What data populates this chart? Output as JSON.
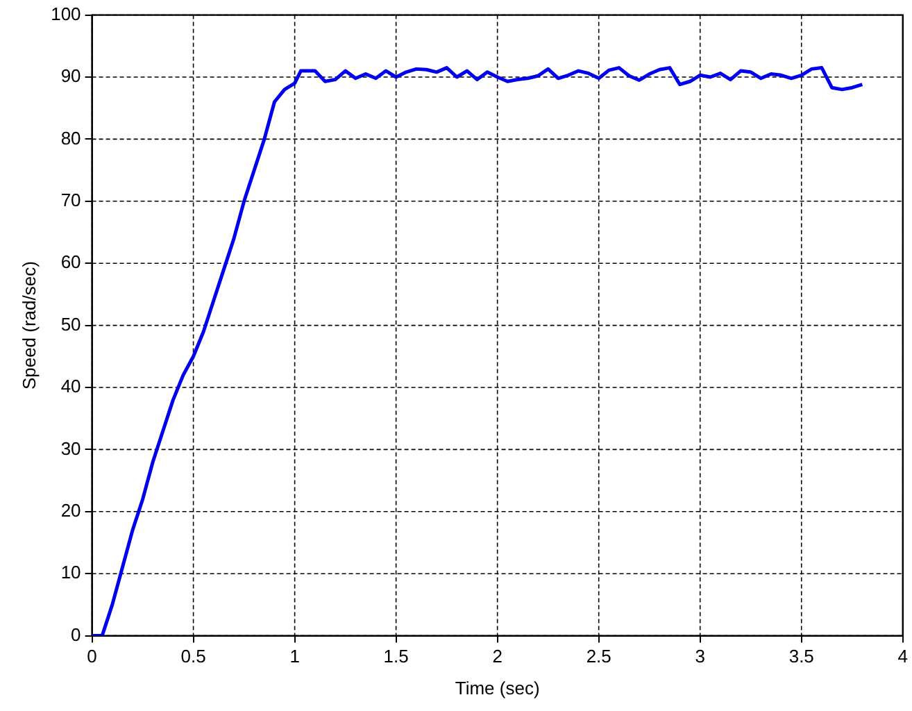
{
  "chart_data": {
    "type": "line",
    "xlabel": "Time (sec)",
    "ylabel": "Speed (rad/sec)",
    "x": [
      0,
      0.05,
      0.1,
      0.15,
      0.2,
      0.25,
      0.3,
      0.35,
      0.4,
      0.45,
      0.5,
      0.55,
      0.6,
      0.65,
      0.7,
      0.75,
      0.8,
      0.85,
      0.9,
      0.95,
      1.0,
      1.03,
      1.05,
      1.1,
      1.15,
      1.2,
      1.25,
      1.3,
      1.35,
      1.4,
      1.45,
      1.5,
      1.55,
      1.6,
      1.65,
      1.7,
      1.75,
      1.8,
      1.85,
      1.9,
      1.95,
      2.0,
      2.05,
      2.1,
      2.15,
      2.2,
      2.25,
      2.3,
      2.35,
      2.4,
      2.45,
      2.5,
      2.55,
      2.6,
      2.65,
      2.7,
      2.75,
      2.8,
      2.85,
      2.9,
      2.95,
      3.0,
      3.05,
      3.1,
      3.15,
      3.2,
      3.25,
      3.3,
      3.35,
      3.4,
      3.45,
      3.5,
      3.55,
      3.6,
      3.65,
      3.7,
      3.75,
      3.8
    ],
    "series": [
      {
        "color": "#0000ee",
        "values": [
          0,
          0,
          5,
          11,
          17,
          22,
          28,
          33,
          38,
          42,
          45,
          49,
          54,
          59,
          64,
          70,
          75,
          80,
          86,
          88,
          89,
          91,
          91,
          91,
          89.3,
          89.6,
          91,
          89.8,
          90.5,
          89.8,
          91,
          90,
          90.8,
          91.3,
          91.2,
          90.8,
          91.5,
          90,
          91,
          89.6,
          90.8,
          90,
          89.3,
          89.6,
          89.8,
          90.2,
          91.3,
          89.8,
          90.3,
          91,
          90.6,
          89.8,
          91.1,
          91.5,
          90.2,
          89.5,
          90.5,
          91.2,
          91.5,
          88.8,
          89.3,
          90.3,
          90,
          90.6,
          89.6,
          91,
          90.8,
          89.8,
          90.5,
          90.3,
          89.8,
          90.3,
          91.3,
          91.5,
          88.3,
          88,
          88.3,
          88.8
        ]
      }
    ],
    "xlim": [
      0,
      4
    ],
    "xticks": [
      0,
      0.5,
      1,
      1.5,
      2,
      2.5,
      3,
      3.5,
      4
    ],
    "ylim": [
      0,
      100
    ],
    "yticks": [
      0,
      10,
      20,
      30,
      40,
      50,
      60,
      70,
      80,
      90,
      100
    ],
    "grid": true,
    "legend": false,
    "line_style": "solid",
    "marker": "none"
  }
}
